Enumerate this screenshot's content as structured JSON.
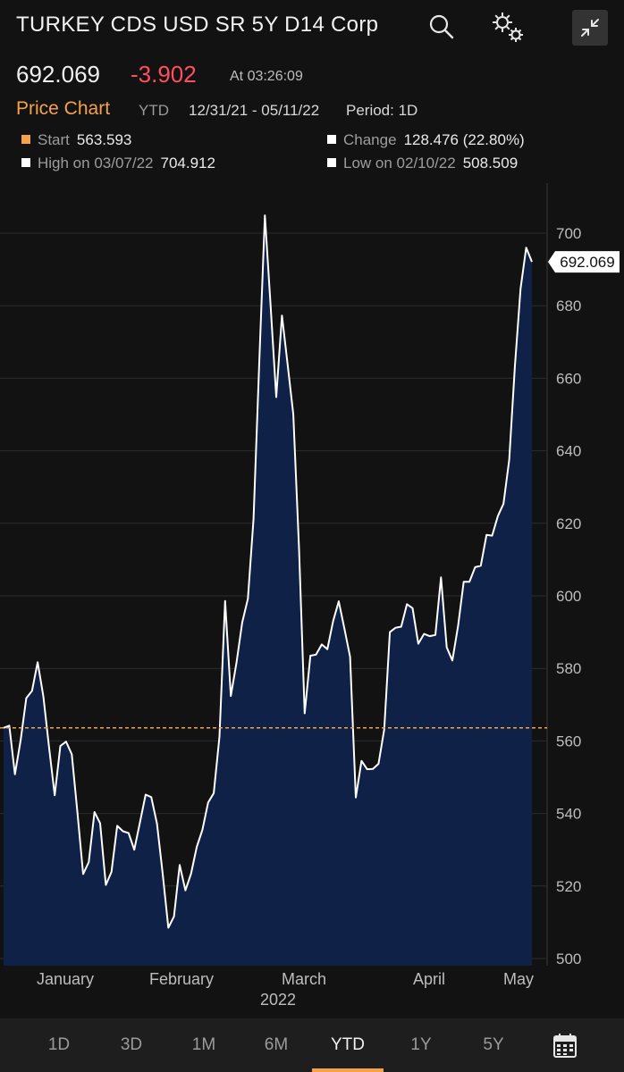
{
  "header": {
    "title": "TURKEY CDS USD SR 5Y D14 Corp",
    "icons": [
      "search-icon",
      "gear-icon",
      "collapse-icon"
    ]
  },
  "quote": {
    "price": "692.069",
    "change": "-3.902",
    "as_of": "At 03:26:09"
  },
  "chart_header": {
    "label": "Price Chart",
    "range": "YTD",
    "dates": "12/31/21 - 05/11/22",
    "period": "Period: 1D"
  },
  "stats": {
    "start_label": "Start",
    "start_value": "563.593",
    "change_label": "Change",
    "change_value": "128.476 (22.80%)",
    "high_label": "High on 03/07/22",
    "high_value": "704.912",
    "low_label": "Low on 02/10/22",
    "low_value": "508.509"
  },
  "colors": {
    "accent": "#f4a24c",
    "negative": "#ff4f5e",
    "area_fill": "#0f2147",
    "line": "#ffffff"
  },
  "chart_data": {
    "type": "area",
    "ylim": [
      500,
      706
    ],
    "yticks": [
      500,
      520,
      540,
      560,
      580,
      600,
      620,
      640,
      660,
      680,
      700
    ],
    "xticks": [
      "January",
      "February",
      "March",
      "April",
      "May"
    ],
    "year_label": "2022",
    "reference_value": 563.593,
    "last_value_label": "692.069",
    "values": [
      563.6,
      564.2,
      550.8,
      560.2,
      571.8,
      573.8,
      581.7,
      572.3,
      558.4,
      545.0,
      558.6,
      559.8,
      556.3,
      540.3,
      523.3,
      526.6,
      540.4,
      537.3,
      520.3,
      523.9,
      536.6,
      535.1,
      534.6,
      530.0,
      537.5,
      545.2,
      544.5,
      537.2,
      523.6,
      508.5,
      511.6,
      525.8,
      518.8,
      523.4,
      530.8,
      535.5,
      543.0,
      545.6,
      561.2,
      598.6,
      572.4,
      581.5,
      592.6,
      599.2,
      621.2,
      664.3,
      704.9,
      680.0,
      654.8,
      677.3,
      663.9,
      650.0,
      613.0,
      567.6,
      583.5,
      583.8,
      586.6,
      585.3,
      593.0,
      598.5,
      590.9,
      583.2,
      544.4,
      554.5,
      552.2,
      552.3,
      553.7,
      563.2,
      590.0,
      591.2,
      591.5,
      597.7,
      596.6,
      586.8,
      589.5,
      588.9,
      589.2,
      605.1,
      585.8,
      582.2,
      591.7,
      603.9,
      603.9,
      607.9,
      608.3,
      616.8,
      616.6,
      622.0,
      625.4,
      637.5,
      663.1,
      684.7,
      696.0,
      692.1
    ]
  },
  "tabs": [
    "1D",
    "3D",
    "1M",
    "6M",
    "YTD",
    "1Y",
    "5Y"
  ],
  "active_tab": "YTD"
}
